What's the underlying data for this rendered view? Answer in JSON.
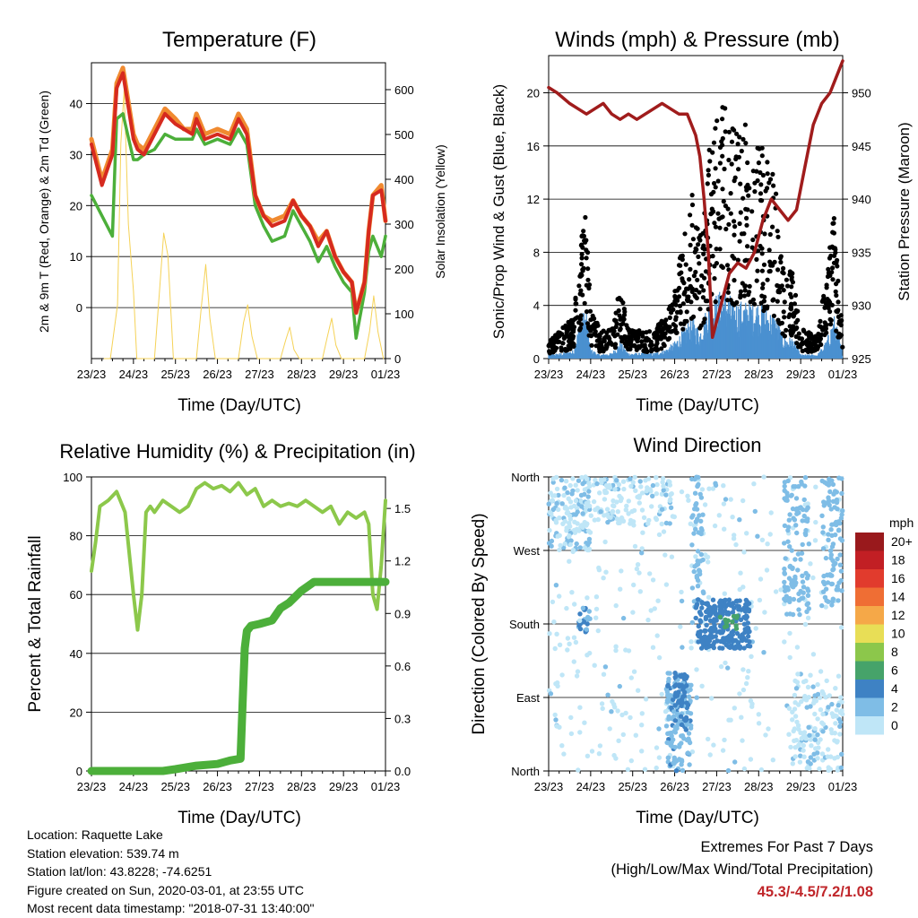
{
  "colors": {
    "temp_2m": "#d62a1f",
    "temp_9m": "#f08a30",
    "dewpoint": "#4caf3a",
    "solar": "#f5d257",
    "sonic_wind": "#4a90d0",
    "gust": "#000000",
    "pressure": "#a01c1c",
    "rh": "#8cc84b",
    "precip": "#4caf3a",
    "speed_scale": [
      "#bfe6f7",
      "#7fbde6",
      "#3e82c4",
      "#46a36a",
      "#8cc74b",
      "#e8de56",
      "#f5a848",
      "#ef6e34",
      "#e13b2d",
      "#c21f24",
      "#99191c"
    ]
  },
  "days": [
    "23/23",
    "24/23",
    "25/23",
    "26/23",
    "27/23",
    "28/23",
    "29/23",
    "01/23"
  ],
  "info": {
    "location": "Location: Raquette Lake",
    "elevation": "Station elevation: 539.74 m",
    "latlon": "Station lat/lon: 43.8228; -74.6251",
    "created": "Figure created on Sun, 2020-03-01, at 23:55 UTC",
    "timestamp": "Most recent data timestamp: \"2018-07-31 13:40:00\""
  },
  "extremes": {
    "title": "Extremes For Past 7 Days",
    "subtitle": "(High/Low/Max Wind/Total Precipitation)",
    "values": "45.3/-4.5/7.2/1.08"
  },
  "chart_data": [
    {
      "type": "line",
      "title": "Temperature (F)",
      "xlabel": "Time (Day/UTC)",
      "ylabel": "2m & 9m T (Red, Orange) & 2m Td (Green)",
      "ylabel_right": "Solar Insolation (Yellow)",
      "x": [
        0,
        0.25,
        0.5,
        0.6,
        0.75,
        1.0,
        1.1,
        1.25,
        1.5,
        1.75,
        2.0,
        2.2,
        2.4,
        2.5,
        2.7,
        3.0,
        3.3,
        3.5,
        3.7,
        3.9,
        4.1,
        4.3,
        4.6,
        4.8,
        5.0,
        5.2,
        5.4,
        5.6,
        5.8,
        6.0,
        6.2,
        6.3,
        6.5,
        6.6,
        6.7,
        6.9,
        7.0
      ],
      "ylim": [
        -10,
        48
      ],
      "yticks": [
        0,
        10,
        20,
        30,
        40
      ],
      "y2lim": [
        0,
        660
      ],
      "y2ticks": [
        0,
        100,
        200,
        300,
        400,
        500,
        600
      ],
      "series": [
        {
          "key": "t2m",
          "values": [
            32,
            24,
            30,
            43,
            46,
            33,
            31,
            30,
            34,
            38,
            36,
            35,
            34,
            37,
            33,
            34,
            33,
            37,
            34,
            22,
            18,
            16,
            17,
            21,
            18,
            16,
            12,
            15,
            10,
            7,
            5,
            -1,
            5,
            15,
            22,
            23,
            17
          ]
        },
        {
          "key": "t9m",
          "values": [
            33,
            25,
            31,
            44,
            47,
            34,
            32,
            31,
            35,
            39,
            37,
            35,
            35,
            38,
            34,
            35,
            34,
            38,
            35,
            22,
            18,
            17,
            18,
            21,
            18,
            16,
            13,
            15,
            10,
            7,
            5,
            -1,
            5,
            15,
            22,
            24,
            17
          ]
        },
        {
          "key": "td",
          "values": [
            22,
            18,
            14,
            37,
            38,
            29,
            29,
            30,
            31,
            34,
            33,
            33,
            33,
            35,
            32,
            33,
            32,
            35,
            32,
            20,
            16,
            13,
            14,
            19,
            16,
            13,
            9,
            12,
            8,
            5,
            3,
            -6,
            3,
            11,
            14,
            10,
            14
          ]
        },
        {
          "key": "solar",
          "x": [
            0.3,
            0.45,
            0.62,
            0.7,
            0.78,
            0.88,
            1.0,
            1.08,
            1.5,
            1.62,
            1.72,
            1.82,
            1.95,
            2.5,
            2.62,
            2.72,
            2.82,
            2.95,
            3.5,
            3.62,
            3.72,
            3.82,
            3.95,
            4.5,
            4.62,
            4.72,
            4.82,
            4.95,
            5.5,
            5.62,
            5.72,
            5.82,
            5.95,
            6.5,
            6.62,
            6.72,
            6.82,
            6.95
          ],
          "values": [
            0,
            0,
            120,
            480,
            600,
            300,
            150,
            0,
            0,
            150,
            280,
            230,
            0,
            0,
            120,
            210,
            90,
            0,
            0,
            80,
            120,
            50,
            0,
            0,
            40,
            70,
            20,
            0,
            0,
            50,
            90,
            30,
            0,
            0,
            60,
            140,
            60,
            0
          ]
        }
      ]
    },
    {
      "type": "scatter",
      "title": "Winds (mph) & Pressure (mb)",
      "xlabel": "Time (Day/UTC)",
      "ylabel": "Sonic/Prop Wind & Gust (Blue, Black)",
      "ylabel_right": "Station Pressure (Maroon)",
      "ylim": [
        0,
        22.8
      ],
      "yticks": [
        0,
        4,
        8,
        12,
        16,
        20
      ],
      "y2lim": [
        925,
        953.5
      ],
      "y2ticks": [
        925,
        930,
        935,
        940,
        945,
        950
      ],
      "gust_envelope": {
        "x": [
          0,
          0.3,
          0.6,
          0.75,
          0.9,
          1.0,
          1.2,
          1.5,
          1.7,
          1.9,
          2.2,
          2.5,
          2.8,
          3.0,
          3.2,
          3.4,
          3.6,
          3.8,
          4.0,
          4.2,
          4.4,
          4.6,
          4.8,
          5.0,
          5.2,
          5.4,
          5.6,
          5.8,
          6.0,
          6.2,
          6.4,
          6.6,
          6.8,
          7.0
        ],
        "values": [
          1.5,
          2,
          3,
          9,
          10,
          4,
          2,
          2,
          5,
          2,
          2,
          2,
          3,
          5,
          8,
          12,
          8,
          14,
          17,
          18,
          16,
          16,
          16,
          15,
          14,
          12,
          6,
          6,
          2,
          2,
          1.5,
          6,
          10,
          2
        ]
      },
      "sonic_envelope": {
        "x": [
          0,
          0.3,
          0.6,
          0.75,
          0.9,
          1.0,
          1.2,
          1.5,
          1.7,
          1.9,
          2.2,
          2.5,
          2.8,
          3.0,
          3.2,
          3.4,
          3.6,
          3.8,
          4.0,
          4.2,
          4.4,
          4.6,
          4.8,
          5.0,
          5.2,
          5.4,
          5.6,
          5.8,
          6.0,
          6.2,
          6.4,
          6.6,
          6.8,
          7.0
        ],
        "values": [
          0.3,
          0.4,
          0.6,
          3,
          3.5,
          0.7,
          0.3,
          0.4,
          1.2,
          0.4,
          0.4,
          0.4,
          0.7,
          1.2,
          2,
          3,
          2,
          4,
          4.5,
          5,
          4,
          4,
          4,
          4,
          3.5,
          3,
          1.5,
          1.5,
          0.3,
          0.3,
          0.3,
          1.2,
          3,
          0.4
        ]
      },
      "pressure": {
        "x": [
          0,
          0.2,
          0.5,
          0.7,
          0.9,
          1.1,
          1.3,
          1.5,
          1.7,
          1.9,
          2.1,
          2.3,
          2.5,
          2.7,
          2.9,
          3.1,
          3.3,
          3.5,
          3.6,
          3.7,
          3.8,
          3.9,
          4.1,
          4.3,
          4.5,
          4.7,
          4.9,
          5.1,
          5.3,
          5.5,
          5.7,
          5.9,
          6.1,
          6.3,
          6.5,
          6.7,
          6.9,
          7.0
        ],
        "values": [
          950.5,
          950,
          949,
          948.5,
          948,
          948.5,
          949,
          948,
          947.5,
          948,
          947.5,
          948,
          948.5,
          949,
          948.5,
          948,
          948,
          946,
          944,
          940,
          935,
          927,
          930,
          933,
          934,
          933.5,
          935,
          938,
          940,
          939,
          938,
          939,
          943,
          947,
          949,
          950,
          952,
          953
        ]
      }
    },
    {
      "type": "line",
      "title": "Relative Humidity (%) & Precipitation (in)",
      "xlabel": "Time (Day/UTC)",
      "ylabel": "Percent & Total Rainfall",
      "ylim": [
        0,
        100
      ],
      "yticks": [
        0,
        20,
        40,
        60,
        80,
        100
      ],
      "y2lim": [
        0,
        1.68
      ],
      "y2ticks": [
        0.0,
        0.3,
        0.6,
        0.9,
        1.2,
        1.5
      ],
      "y2ticklabels": [
        "0.0",
        "0.3",
        "0.6",
        "0.9",
        "1.2",
        "1.5"
      ],
      "series": [
        {
          "key": "rh",
          "x": [
            0,
            0.1,
            0.2,
            0.4,
            0.6,
            0.8,
            1.0,
            1.1,
            1.2,
            1.3,
            1.4,
            1.5,
            1.7,
            1.9,
            2.1,
            2.3,
            2.5,
            2.7,
            2.9,
            3.1,
            3.3,
            3.5,
            3.7,
            3.9,
            4.1,
            4.3,
            4.5,
            4.7,
            4.9,
            5.1,
            5.3,
            5.5,
            5.7,
            5.9,
            6.1,
            6.3,
            6.5,
            6.6,
            6.7,
            6.8,
            6.9,
            7.0
          ],
          "values": [
            68,
            78,
            90,
            92,
            95,
            88,
            60,
            48,
            60,
            88,
            90,
            88,
            92,
            90,
            88,
            90,
            96,
            98,
            96,
            97,
            95,
            98,
            94,
            96,
            90,
            92,
            90,
            91,
            90,
            92,
            90,
            88,
            90,
            84,
            88,
            86,
            88,
            84,
            60,
            55,
            70,
            92
          ]
        },
        {
          "key": "precip",
          "x": [
            0,
            1.5,
            1.7,
            2.0,
            2.5,
            3.0,
            3.3,
            3.55,
            3.6,
            3.65,
            3.7,
            3.8,
            4.0,
            4.3,
            4.5,
            4.7,
            5.0,
            5.3,
            5.6,
            6.0,
            6.5,
            7.0
          ],
          "values": [
            0,
            0,
            0,
            0.01,
            0.03,
            0.04,
            0.06,
            0.07,
            0.4,
            0.7,
            0.8,
            0.83,
            0.84,
            0.86,
            0.93,
            0.96,
            1.03,
            1.08,
            1.08,
            1.08,
            1.08,
            1.08
          ]
        }
      ]
    },
    {
      "type": "scatter",
      "title": "Wind Direction",
      "xlabel": "Time (Day/UTC)",
      "ylabel": "Direction (Colored By Speed)",
      "yticklabels": [
        "North",
        "East",
        "South",
        "West",
        "North"
      ],
      "ylim": [
        0,
        360
      ],
      "legend_title": "mph",
      "legend_labels": [
        "0",
        "2",
        "4",
        "6",
        "8",
        "10",
        "12",
        "14",
        "16",
        "18",
        "20+"
      ],
      "clusters": [
        {
          "x": [
            0,
            1
          ],
          "dir": [
            270,
            360
          ],
          "speed": 0.8,
          "n": 140
        },
        {
          "x": [
            0.7,
            1.0
          ],
          "dir": [
            170,
            200
          ],
          "speed": 3,
          "n": 22
        },
        {
          "x": [
            1,
            3
          ],
          "dir": [
            300,
            360
          ],
          "speed": 0.6,
          "n": 120
        },
        {
          "x": [
            0,
            7
          ],
          "dir": [
            0,
            360
          ],
          "speed": 0.4,
          "n": 360
        },
        {
          "x": [
            2.8,
            3.4
          ],
          "dir": [
            0,
            120
          ],
          "speed": 2.5,
          "n": 140
        },
        {
          "x": [
            3.0,
            3.3
          ],
          "dir": [
            60,
            120
          ],
          "speed": 3.8,
          "n": 40
        },
        {
          "x": [
            3.4,
            3.7
          ],
          "dir": [
            200,
            360
          ],
          "speed": 2.2,
          "n": 50
        },
        {
          "x": [
            3.5,
            4.8
          ],
          "dir": [
            150,
            210
          ],
          "speed": 3.8,
          "n": 230
        },
        {
          "x": [
            4.0,
            4.5
          ],
          "dir": [
            170,
            190
          ],
          "speed": 6,
          "n": 12
        },
        {
          "x": [
            5.6,
            6.2
          ],
          "dir": [
            190,
            360
          ],
          "speed": 2,
          "n": 110
        },
        {
          "x": [
            6.5,
            7.0
          ],
          "dir": [
            200,
            360
          ],
          "speed": 2,
          "n": 90
        },
        {
          "x": [
            5.8,
            6.4
          ],
          "dir": [
            0,
            120
          ],
          "speed": 0.8,
          "n": 60
        },
        {
          "x": [
            6.3,
            7.0
          ],
          "dir": [
            0,
            100
          ],
          "speed": 0.8,
          "n": 60
        }
      ]
    }
  ]
}
